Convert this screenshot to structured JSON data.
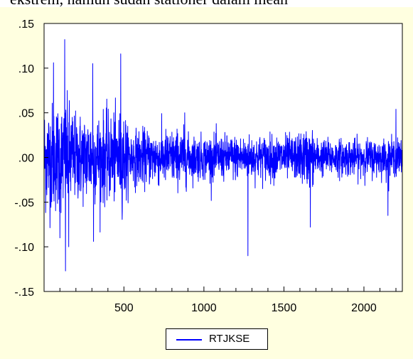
{
  "caption": "ekstrem, namun sudah stationer dalam mean",
  "colors": {
    "background": "#ffffe0",
    "plot_background": "#ffffff",
    "series": "#0000ff"
  },
  "chart_data": {
    "type": "line",
    "title": "",
    "xlabel": "",
    "ylabel": "",
    "xlim": [
      1,
      2240
    ],
    "ylim": [
      -0.15,
      0.15
    ],
    "x_ticks": [
      500,
      1000,
      1500,
      2000
    ],
    "x_tick_labels": [
      "500",
      "1000",
      "1500",
      "2000"
    ],
    "y_ticks": [
      0.15,
      0.1,
      0.05,
      0.0,
      -0.05,
      -0.1,
      -0.15
    ],
    "y_tick_labels": [
      ".15",
      ".10",
      ".05",
      ".00",
      "-.05",
      "-.10",
      "-.15"
    ],
    "grid": false,
    "legend": "bottom-center",
    "series": [
      {
        "name": "RTJKSE",
        "n_obs": 2240,
        "extremes": [
          {
            "x": 60,
            "y": 0.106
          },
          {
            "x": 100,
            "y": -0.09
          },
          {
            "x": 130,
            "y": 0.132
          },
          {
            "x": 135,
            "y": -0.127
          },
          {
            "x": 155,
            "y": -0.1
          },
          {
            "x": 305,
            "y": 0.105
          },
          {
            "x": 310,
            "y": -0.094
          },
          {
            "x": 480,
            "y": 0.116
          },
          {
            "x": 490,
            "y": -0.06
          },
          {
            "x": 880,
            "y": 0.05
          },
          {
            "x": 1275,
            "y": -0.11
          },
          {
            "x": 1665,
            "y": -0.078
          },
          {
            "x": 2150,
            "y": -0.065
          },
          {
            "x": 2200,
            "y": 0.054
          }
        ]
      }
    ]
  }
}
